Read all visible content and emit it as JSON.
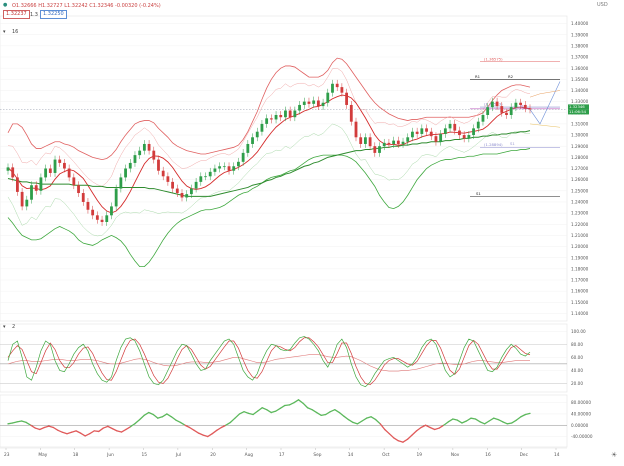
{
  "header": {
    "ohlc_text": "O1.32666  H1.32727  L1.32242  C1.32346  -0.00320 (-0.24%)",
    "sell_price": "1.32237",
    "spread": "1.3",
    "buy_price": "1.32250",
    "indicator_label": "16",
    "currency": "USD"
  },
  "chart_data": [
    {
      "type": "candlestick",
      "panel": "price",
      "x_tick_labels": [
        "23",
        "May",
        "18",
        "Jun",
        "15",
        "Jul",
        "20",
        "Aug",
        "17",
        "Sep",
        "14",
        "Oct",
        "19",
        "Nov",
        "16",
        "Dec",
        "14"
      ],
      "y_tick_labels": [
        "1.40000",
        "1.39000",
        "1.38000",
        "1.37000",
        "1.36000",
        "1.35000",
        "1.34000",
        "1.33000",
        "1.32000",
        "1.31000",
        "1.30000",
        "1.29000",
        "1.28000",
        "1.27000",
        "1.26000",
        "1.25000",
        "1.24000",
        "1.23000",
        "1.22000",
        "1.21000",
        "1.20000",
        "1.19000",
        "1.18000",
        "1.17000",
        "1.16000",
        "1.15000",
        "1.14000"
      ],
      "ylim": [
        1.135,
        1.405
      ],
      "current_price_label": "1.32346",
      "countdown_label": "11:06:54",
      "close": [
        1.271,
        1.262,
        1.249,
        1.236,
        1.242,
        1.255,
        1.25,
        1.262,
        1.27,
        1.266,
        1.278,
        1.275,
        1.27,
        1.262,
        1.255,
        1.248,
        1.24,
        1.233,
        1.228,
        1.224,
        1.222,
        1.228,
        1.236,
        1.252,
        1.262,
        1.27,
        1.275,
        1.282,
        1.286,
        1.292,
        1.286,
        1.278,
        1.268,
        1.263,
        1.258,
        1.252,
        1.248,
        1.244,
        1.247,
        1.252,
        1.258,
        1.263,
        1.263,
        1.267,
        1.27,
        1.272,
        1.272,
        1.268,
        1.272,
        1.276,
        1.284,
        1.292,
        1.298,
        1.303,
        1.31,
        1.315,
        1.314,
        1.318,
        1.316,
        1.322,
        1.316,
        1.322,
        1.327,
        1.33,
        1.328,
        1.331,
        1.326,
        1.329,
        1.338,
        1.346,
        1.343,
        1.338,
        1.327,
        1.312,
        1.298,
        1.292,
        1.298,
        1.29,
        1.284,
        1.29,
        1.293,
        1.292,
        1.295,
        1.292,
        1.294,
        1.298,
        1.303,
        1.301,
        1.306,
        1.303,
        1.299,
        1.294,
        1.301,
        1.306,
        1.31,
        1.304,
        1.3,
        1.297,
        1.3,
        1.306,
        1.312,
        1.318,
        1.325,
        1.33,
        1.326,
        1.32,
        1.318,
        1.325,
        1.329,
        1.327,
        1.324,
        1.323
      ],
      "upper_band": [
        1.302,
        1.31,
        1.31,
        1.307,
        1.3,
        1.292,
        1.288,
        1.288,
        1.29,
        1.292,
        1.294,
        1.294,
        1.292,
        1.291,
        1.289,
        1.286,
        1.284,
        1.282,
        1.28,
        1.279,
        1.278,
        1.279,
        1.282,
        1.287,
        1.294,
        1.3,
        1.305,
        1.31,
        1.312,
        1.313,
        1.313,
        1.311,
        1.306,
        1.302,
        1.298,
        1.293,
        1.29,
        1.288,
        1.286,
        1.285,
        1.284,
        1.283,
        1.283,
        1.284,
        1.285,
        1.286,
        1.287,
        1.288,
        1.289,
        1.291,
        1.296,
        1.303,
        1.312,
        1.321,
        1.332,
        1.342,
        1.35,
        1.356,
        1.36,
        1.362,
        1.362,
        1.361,
        1.358,
        1.355,
        1.352,
        1.352,
        1.352,
        1.354,
        1.358,
        1.365,
        1.369,
        1.368,
        1.364,
        1.358,
        1.352,
        1.346,
        1.34,
        1.334,
        1.329,
        1.325,
        1.322,
        1.319,
        1.317,
        1.315,
        1.314,
        1.313,
        1.314,
        1.314,
        1.315,
        1.316,
        1.316,
        1.316,
        1.316,
        1.316,
        1.316,
        1.316,
        1.316,
        1.316,
        1.316,
        1.317,
        1.318,
        1.32,
        1.325,
        1.331,
        1.336,
        1.34,
        1.342,
        1.344,
        1.345,
        1.345,
        1.344,
        1.343
      ],
      "lower_band": [
        1.226,
        1.221,
        1.215,
        1.21,
        1.208,
        1.206,
        1.206,
        1.207,
        1.21,
        1.213,
        1.216,
        1.218,
        1.216,
        1.214,
        1.211,
        1.206,
        1.203,
        1.202,
        1.201,
        1.203,
        1.206,
        1.208,
        1.21,
        1.208,
        1.205,
        1.2,
        1.193,
        1.187,
        1.182,
        1.182,
        1.186,
        1.192,
        1.199,
        1.206,
        1.212,
        1.217,
        1.221,
        1.224,
        1.226,
        1.228,
        1.23,
        1.232,
        1.233,
        1.233,
        1.234,
        1.235,
        1.237,
        1.24,
        1.243,
        1.246,
        1.248,
        1.249,
        1.252,
        1.254,
        1.257,
        1.26,
        1.262,
        1.263,
        1.264,
        1.266,
        1.268,
        1.269,
        1.272,
        1.275,
        1.278,
        1.28,
        1.281,
        1.282,
        1.282,
        1.282,
        1.282,
        1.282,
        1.281,
        1.279,
        1.276,
        1.271,
        1.266,
        1.26,
        1.254,
        1.246,
        1.24,
        1.235,
        1.234,
        1.236,
        1.24,
        1.246,
        1.253,
        1.26,
        1.265,
        1.27,
        1.273,
        1.275,
        1.277,
        1.278,
        1.278,
        1.279,
        1.28,
        1.28,
        1.281,
        1.281,
        1.282,
        1.283,
        1.283,
        1.283,
        1.283,
        1.284,
        1.285,
        1.286,
        1.286,
        1.287,
        1.287,
        1.288
      ],
      "long_ma": [
        1.261,
        1.26,
        1.259,
        1.258,
        1.258,
        1.257,
        1.257,
        1.256,
        1.256,
        1.256,
        1.256,
        1.256,
        1.256,
        1.256,
        1.255,
        1.255,
        1.255,
        1.255,
        1.254,
        1.254,
        1.254,
        1.253,
        1.253,
        1.253,
        1.253,
        1.253,
        1.253,
        1.253,
        1.253,
        1.253,
        1.252,
        1.252,
        1.251,
        1.25,
        1.249,
        1.248,
        1.247,
        1.246,
        1.245,
        1.245,
        1.245,
        1.245,
        1.245,
        1.245,
        1.246,
        1.247,
        1.248,
        1.249,
        1.25,
        1.251,
        1.252,
        1.253,
        1.255,
        1.256,
        1.257,
        1.259,
        1.26,
        1.262,
        1.263,
        1.265,
        1.266,
        1.268,
        1.27,
        1.272,
        1.273,
        1.275,
        1.276,
        1.278,
        1.28,
        1.281,
        1.282,
        1.283,
        1.284,
        1.285,
        1.286,
        1.286,
        1.287,
        1.287,
        1.288,
        1.288,
        1.289,
        1.289,
        1.29,
        1.29,
        1.291,
        1.291,
        1.292,
        1.292,
        1.293,
        1.293,
        1.294,
        1.294,
        1.294,
        1.295,
        1.295,
        1.296,
        1.296,
        1.297,
        1.297,
        1.298,
        1.298,
        1.299,
        1.299,
        1.3,
        1.3,
        1.301,
        1.301,
        1.302,
        1.302,
        1.303,
        1.303,
        1.304
      ],
      "level_labels": [
        "(1.36575)",
        "R1",
        "R2",
        "(1.32513)",
        "P",
        "(1.28894)",
        "S1",
        "S1"
      ],
      "level_values": [
        1.36575,
        1.35,
        1.35,
        1.32513,
        1.3235,
        1.28894,
        1.29,
        1.245
      ]
    },
    {
      "type": "line",
      "panel": "oscillator",
      "indicator_label": "2",
      "y_tick_labels": [
        "100.00",
        "80.00",
        "60.00",
        "40.00",
        "20.00"
      ],
      "ylim": [
        10,
        108
      ],
      "k": [
        55,
        80,
        85,
        60,
        30,
        25,
        45,
        70,
        85,
        80,
        55,
        40,
        38,
        50,
        65,
        75,
        80,
        70,
        50,
        35,
        25,
        22,
        30,
        55,
        75,
        88,
        90,
        85,
        70,
        50,
        30,
        20,
        18,
        25,
        40,
        55,
        70,
        80,
        78,
        65,
        50,
        40,
        42,
        55,
        65,
        75,
        85,
        88,
        80,
        60,
        40,
        30,
        25,
        35,
        55,
        70,
        80,
        78,
        72,
        70,
        72,
        82,
        90,
        92,
        88,
        80,
        70,
        55,
        45,
        60,
        80,
        88,
        75,
        50,
        30,
        18,
        15,
        22,
        35,
        45,
        55,
        58,
        60,
        55,
        50,
        45,
        50,
        60,
        75,
        85,
        88,
        80,
        60,
        40,
        30,
        35,
        55,
        75,
        88,
        85,
        70,
        55,
        40,
        38,
        45,
        60,
        72,
        80,
        74,
        65,
        62,
        68
      ],
      "d": [
        60,
        70,
        78,
        72,
        55,
        38,
        35,
        52,
        70,
        82,
        72,
        55,
        45,
        44,
        52,
        65,
        74,
        76,
        66,
        50,
        36,
        26,
        25,
        38,
        56,
        74,
        86,
        88,
        80,
        65,
        48,
        32,
        22,
        20,
        28,
        42,
        58,
        72,
        78,
        72,
        60,
        48,
        42,
        46,
        56,
        66,
        76,
        85,
        85,
        74,
        56,
        40,
        30,
        28,
        38,
        54,
        70,
        78,
        76,
        72,
        70,
        75,
        84,
        90,
        90,
        84,
        76,
        64,
        52,
        52,
        66,
        82,
        82,
        66,
        46,
        30,
        20,
        18,
        25,
        36,
        48,
        55,
        58,
        58,
        54,
        50,
        48,
        54,
        66,
        78,
        86,
        86,
        74,
        56,
        40,
        34,
        42,
        60,
        78,
        86,
        80,
        66,
        52,
        42,
        42,
        52,
        64,
        75,
        78,
        72,
        66,
        64
      ],
      "slow": [
        50,
        52,
        54,
        55,
        55,
        54,
        54,
        54,
        55,
        56,
        57,
        57,
        56,
        55,
        55,
        56,
        57,
        57,
        56,
        55,
        53,
        51,
        50,
        50,
        51,
        53,
        55,
        57,
        58,
        57,
        55,
        52,
        50,
        48,
        47,
        47,
        48,
        50,
        52,
        53,
        53,
        53,
        52,
        52,
        53,
        54,
        56,
        58,
        60,
        60,
        58,
        56,
        54,
        52,
        52,
        53,
        55,
        57,
        58,
        59,
        60,
        61,
        62,
        63,
        64,
        64,
        64,
        63,
        61,
        60,
        60,
        61,
        62,
        61,
        58,
        55,
        51,
        47,
        44,
        41,
        40,
        39,
        39,
        39,
        40,
        40,
        41,
        42,
        44,
        46,
        48,
        50,
        51,
        51,
        50,
        49,
        49,
        50,
        52,
        54,
        55,
        55,
        54,
        53,
        52,
        52,
        53,
        54,
        55,
        55,
        55,
        55
      ]
    },
    {
      "type": "line",
      "panel": "momentum",
      "y_tick_labels": [
        "80.00000",
        "40.00000",
        "0.00000",
        "-40.00000"
      ],
      "ylim": [
        -70,
        100
      ],
      "values": [
        5,
        8,
        12,
        15,
        10,
        0,
        -10,
        -15,
        -8,
        -3,
        -8,
        -18,
        -25,
        -30,
        -25,
        -20,
        -28,
        -38,
        -30,
        -20,
        -22,
        -10,
        -4,
        -12,
        -20,
        -24,
        -15,
        -5,
        6,
        20,
        35,
        45,
        38,
        25,
        30,
        40,
        30,
        18,
        10,
        0,
        -8,
        -18,
        -28,
        -35,
        -40,
        -30,
        -18,
        -8,
        0,
        10,
        25,
        40,
        48,
        42,
        38,
        50,
        62,
        55,
        45,
        50,
        60,
        70,
        72,
        80,
        90,
        78,
        62,
        55,
        45,
        35,
        38,
        48,
        55,
        45,
        32,
        20,
        10,
        5,
        15,
        25,
        30,
        20,
        5,
        -15,
        -30,
        -45,
        -55,
        -60,
        -50,
        -35,
        -20,
        -8,
        0,
        -8,
        -15,
        -10,
        0,
        12,
        22,
        18,
        8,
        15,
        25,
        22,
        12,
        5,
        15,
        25,
        20,
        12,
        5,
        8,
        18,
        30,
        38,
        42
      ],
      "zero_value": 0
    }
  ]
}
